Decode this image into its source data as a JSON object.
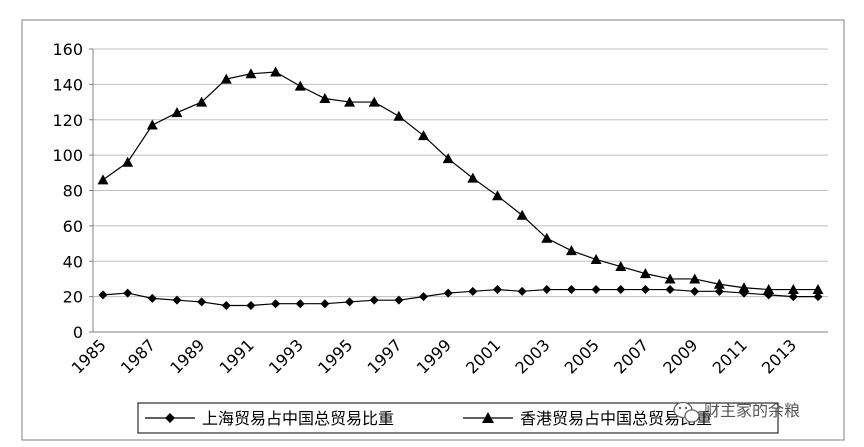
{
  "chart_data": {
    "type": "line",
    "x": [
      1985,
      1986,
      1987,
      1988,
      1989,
      1990,
      1991,
      1992,
      1993,
      1994,
      1995,
      1996,
      1997,
      1998,
      1999,
      2000,
      2001,
      2002,
      2003,
      2004,
      2005,
      2006,
      2007,
      2008,
      2009,
      2010,
      2011,
      2012,
      2013,
      2014
    ],
    "x_tick_labels": [
      "1985",
      "1987",
      "1989",
      "1991",
      "1993",
      "1995",
      "1997",
      "1999",
      "2001",
      "2003",
      "2005",
      "2007",
      "2009",
      "2011",
      "2013"
    ],
    "ylim": [
      0,
      160
    ],
    "y_ticks": [
      0,
      20,
      40,
      60,
      80,
      100,
      120,
      140,
      160
    ],
    "grid": true,
    "legend_position": "bottom",
    "series": [
      {
        "name": "上海贸易占中国总贸易比重",
        "marker": "diamond",
        "values": [
          21,
          22,
          19,
          18,
          17,
          15,
          15,
          16,
          16,
          16,
          17,
          18,
          18,
          20,
          22,
          23,
          24,
          23,
          24,
          24,
          24,
          24,
          24,
          24,
          23,
          23,
          22,
          21,
          20,
          20
        ]
      },
      {
        "name": "香港贸易占中国总贸易比重",
        "marker": "triangle",
        "values": [
          86,
          96,
          117,
          124,
          130,
          143,
          146,
          147,
          139,
          132,
          130,
          130,
          122,
          111,
          98,
          87,
          77,
          66,
          53,
          46,
          41,
          37,
          33,
          30,
          30,
          27,
          25,
          24,
          24,
          24
        ]
      }
    ]
  },
  "watermark": {
    "text": "财主家的余粮",
    "icon": "wechat-icon"
  },
  "colors": {
    "line": "#000000",
    "grid": "#bfbfbf",
    "border": "#7f7f7f"
  }
}
